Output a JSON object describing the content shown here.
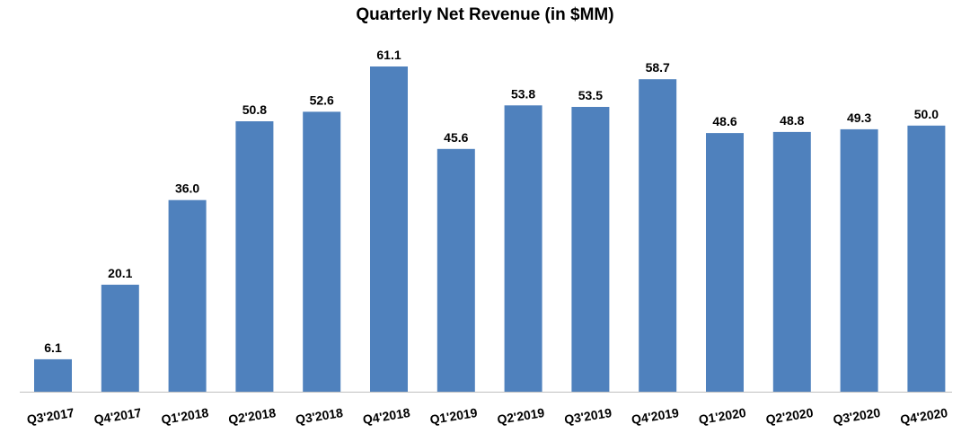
{
  "chart_data": {
    "type": "bar",
    "title": "Quarterly Net Revenue (in $MM)",
    "categories": [
      "Q3'2017",
      "Q4'2017",
      "Q1'2018",
      "Q2'2018",
      "Q3'2018",
      "Q4'2018",
      "Q1'2019",
      "Q2'2019",
      "Q3'2019",
      "Q4'2019",
      "Q1'2020",
      "Q2'2020",
      "Q3'2020",
      "Q4'2020"
    ],
    "values": [
      6.1,
      20.1,
      36.0,
      50.8,
      52.6,
      61.1,
      45.6,
      53.8,
      53.5,
      58.7,
      48.6,
      48.8,
      49.3,
      50.0
    ],
    "value_labels": [
      "6.1",
      "20.1",
      "36.0",
      "50.8",
      "52.6",
      "61.1",
      "45.6",
      "53.8",
      "53.5",
      "58.7",
      "48.6",
      "48.8",
      "49.3",
      "50.0"
    ],
    "ylim": [
      0,
      61.1
    ],
    "grid": false,
    "bar_color": "#4F81BD",
    "axis_color": "#BFBFBF"
  }
}
